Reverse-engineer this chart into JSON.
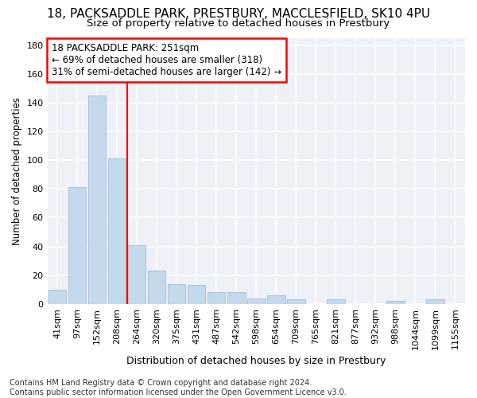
{
  "title1": "18, PACKSADDLE PARK, PRESTBURY, MACCLESFIELD, SK10 4PU",
  "title2": "Size of property relative to detached houses in Prestbury",
  "xlabel": "Distribution of detached houses by size in Prestbury",
  "ylabel": "Number of detached properties",
  "bar_labels": [
    "41sqm",
    "97sqm",
    "152sqm",
    "208sqm",
    "264sqm",
    "320sqm",
    "375sqm",
    "431sqm",
    "487sqm",
    "542sqm",
    "598sqm",
    "654sqm",
    "709sqm",
    "765sqm",
    "821sqm",
    "877sqm",
    "932sqm",
    "988sqm",
    "1044sqm",
    "1099sqm",
    "1155sqm"
  ],
  "bar_values": [
    10,
    81,
    145,
    101,
    41,
    23,
    14,
    13,
    8,
    8,
    4,
    6,
    3,
    0,
    3,
    0,
    0,
    2,
    0,
    3,
    0
  ],
  "bar_color": "#c5d9ed",
  "bar_edge_color": "#a0bcd8",
  "vline_x": 4.0,
  "vline_color": "red",
  "annotation_text": "18 PACKSADDLE PARK: 251sqm\n← 69% of detached houses are smaller (318)\n31% of semi-detached houses are larger (142) →",
  "annotation_box_color": "white",
  "annotation_box_edge": "red",
  "ylim": [
    0,
    185
  ],
  "yticks": [
    0,
    20,
    40,
    60,
    80,
    100,
    120,
    140,
    160,
    180
  ],
  "background_color": "#eef2f8",
  "grid_color": "#ffffff",
  "footer": "Contains HM Land Registry data © Crown copyright and database right 2024.\nContains public sector information licensed under the Open Government Licence v3.0.",
  "title1_fontsize": 11,
  "title2_fontsize": 9.5,
  "xlabel_fontsize": 9,
  "ylabel_fontsize": 8.5,
  "tick_fontsize": 8,
  "footer_fontsize": 7,
  "annot_fontsize": 8.5
}
